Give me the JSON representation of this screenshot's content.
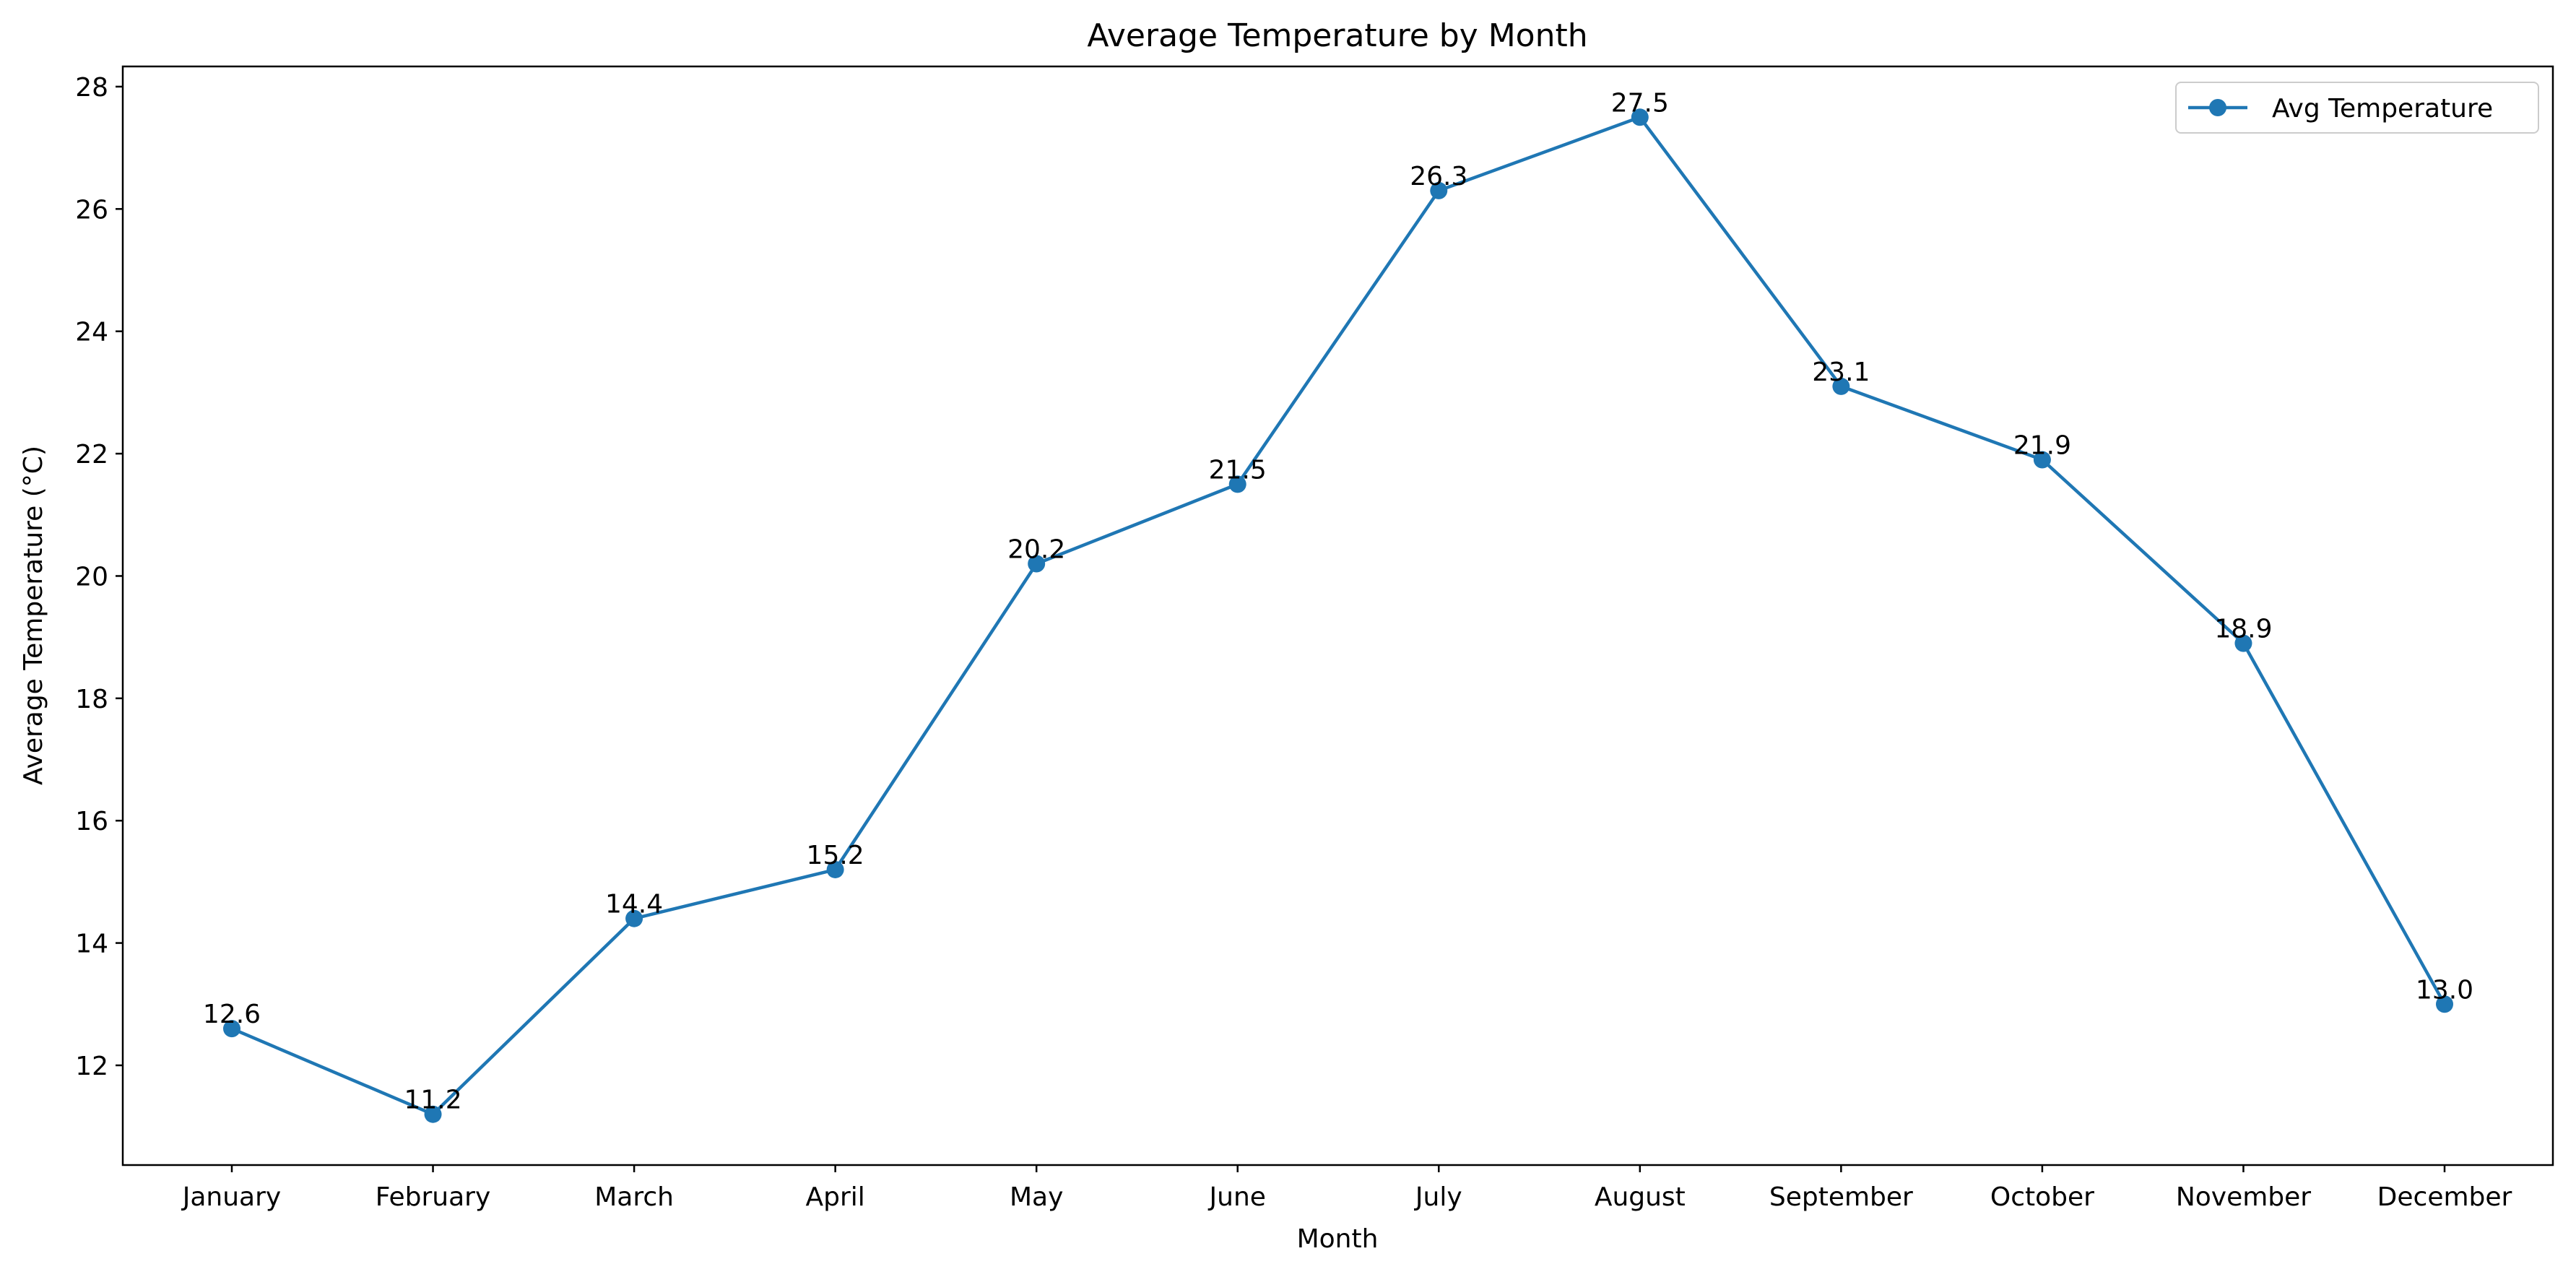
{
  "chart_data": {
    "type": "line",
    "title": "Average Temperature by Month",
    "xlabel": "Month",
    "ylabel": "Average Temperature (°C)",
    "categories": [
      "January",
      "February",
      "March",
      "April",
      "May",
      "June",
      "July",
      "August",
      "September",
      "October",
      "November",
      "December"
    ],
    "series": [
      {
        "name": "Avg Temperature",
        "values": [
          12.6,
          11.2,
          14.4,
          15.2,
          20.2,
          21.5,
          26.3,
          27.5,
          23.1,
          21.9,
          18.9,
          13.0
        ],
        "data_labels": [
          "12.6",
          "11.2",
          "14.4",
          "15.2",
          "20.2",
          "21.5",
          "26.3",
          "27.5",
          "23.1",
          "21.9",
          "18.9",
          "13.0"
        ],
        "color": "#1f77b4",
        "marker": "circle"
      }
    ],
    "yticks": [
      12,
      14,
      16,
      18,
      20,
      22,
      24,
      26,
      28
    ],
    "ylim": [
      10.37,
      28.33
    ],
    "grid": false,
    "legend_position": "upper right"
  }
}
